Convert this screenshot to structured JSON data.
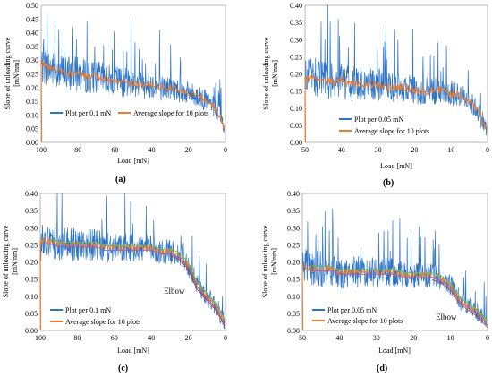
{
  "panels": [
    {
      "label": "(a)",
      "ylabel_lines": [
        "Slope of unloading curve",
        "[mN/nm]"
      ],
      "xlabel": "Load [mN]",
      "xticks": [
        100,
        80,
        60,
        40,
        20,
        0
      ],
      "yticks": [
        "0.00",
        "0.05",
        "0.10",
        "0.15",
        "0.20",
        "0.25",
        "0.30",
        "0.35",
        "0.40",
        "0.45",
        "0.50"
      ],
      "legend": [
        "Plot per 0.1 mN",
        "Average slope for 10 plots"
      ],
      "annotation": ""
    },
    {
      "label": "(b)",
      "ylabel_lines": [
        "Slope of unloading curve",
        "[mN/nm]"
      ],
      "xlabel": "Load [mN]",
      "xticks": [
        50,
        40,
        30,
        20,
        10,
        0
      ],
      "yticks": [
        "0.00",
        "0.05",
        "0.10",
        "0.15",
        "0.20",
        "0.25",
        "0.30",
        "0.35",
        "0.40"
      ],
      "legend": [
        "Plot per 0.05 mN",
        "Average slope for 10 plots"
      ],
      "annotation": ""
    },
    {
      "label": "(c)",
      "ylabel_lines": [
        "Slope of unloading curve",
        "[mN/nm]"
      ],
      "xlabel": "Load [mN]",
      "xticks": [
        100,
        80,
        60,
        40,
        20,
        0
      ],
      "yticks": [
        "0.00",
        "0.05",
        "0.10",
        "0.15",
        "0.20",
        "0.25",
        "0.30",
        "0.35",
        "0.40"
      ],
      "legend": [
        "Plot per 0.1 mN",
        "Average slope for 10 plots"
      ],
      "annotation": "Elbow"
    },
    {
      "label": "(d)",
      "ylabel_lines": [
        "Slope of unloading curve",
        "[mN/nm]"
      ],
      "xlabel": "Load [mN]",
      "xticks": [
        50,
        40,
        30,
        20,
        10,
        0
      ],
      "yticks": [
        "0.00",
        "0.05",
        "0.10",
        "0.15",
        "0.20",
        "0.25",
        "0.30",
        "0.35",
        "0.40"
      ],
      "legend": [
        "Plot per 0.05 mN",
        "Average slope for 10 plots"
      ],
      "annotation": "Elbow"
    }
  ],
  "colors": {
    "raw": "#2e75c9",
    "avg": "#ef7d2e",
    "fit_green": "#6fbf3f",
    "fit_purple": "#9a5ab4",
    "fit_red": "#c0392b"
  },
  "chart_data": [
    {
      "type": "line",
      "title": "",
      "xlabel": "Load [mN]",
      "ylabel": "Slope of unloading curve [mN/nm]",
      "xlim": [
        100,
        0
      ],
      "ylim": [
        0,
        0.5
      ],
      "x_reversed": true,
      "grid": false,
      "legend_position": "bottom-left",
      "series": [
        {
          "name": "Plot per 0.1 mN",
          "x": [
            100,
            95,
            90,
            85,
            80,
            75,
            70,
            65,
            60,
            55,
            50,
            45,
            40,
            35,
            30,
            25,
            20,
            15,
            10,
            5,
            0
          ],
          "values": [
            0.28,
            0.27,
            0.26,
            0.25,
            0.25,
            0.24,
            0.24,
            0.23,
            0.23,
            0.22,
            0.22,
            0.21,
            0.21,
            0.2,
            0.2,
            0.19,
            0.18,
            0.17,
            0.15,
            0.12,
            0.05
          ],
          "noise": 0.07
        },
        {
          "name": "Average slope for 10 plots",
          "x": [
            100,
            95,
            90,
            85,
            80,
            75,
            70,
            65,
            60,
            55,
            50,
            45,
            40,
            35,
            30,
            25,
            20,
            15,
            10,
            5,
            0
          ],
          "values": [
            0.29,
            0.27,
            0.26,
            0.25,
            0.25,
            0.24,
            0.24,
            0.23,
            0.23,
            0.22,
            0.22,
            0.21,
            0.21,
            0.2,
            0.2,
            0.19,
            0.18,
            0.17,
            0.15,
            0.12,
            0.05
          ],
          "noise": 0.012
        }
      ]
    },
    {
      "type": "line",
      "title": "",
      "xlabel": "Load [mN]",
      "ylabel": "Slope of unloading curve [mN/nm]",
      "xlim": [
        50,
        0
      ],
      "ylim": [
        0,
        0.4
      ],
      "x_reversed": true,
      "grid": false,
      "legend_position": "bottom-left",
      "series": [
        {
          "name": "Plot per 0.05 mN",
          "x": [
            50,
            47.5,
            45,
            42.5,
            40,
            37.5,
            35,
            32.5,
            30,
            27.5,
            25,
            22.5,
            20,
            17.5,
            15,
            12.5,
            10,
            7.5,
            5,
            2.5,
            0
          ],
          "values": [
            0.19,
            0.19,
            0.18,
            0.18,
            0.18,
            0.17,
            0.17,
            0.17,
            0.17,
            0.16,
            0.16,
            0.16,
            0.15,
            0.15,
            0.15,
            0.15,
            0.14,
            0.14,
            0.12,
            0.09,
            0.03
          ],
          "noise": 0.06
        },
        {
          "name": "Average slope for 10 plots",
          "x": [
            50,
            47.5,
            45,
            42.5,
            40,
            37.5,
            35,
            32.5,
            30,
            27.5,
            25,
            22.5,
            20,
            17.5,
            15,
            12.5,
            10,
            7.5,
            5,
            2.5,
            0
          ],
          "values": [
            0.19,
            0.19,
            0.18,
            0.18,
            0.18,
            0.17,
            0.17,
            0.17,
            0.17,
            0.16,
            0.16,
            0.16,
            0.15,
            0.15,
            0.15,
            0.15,
            0.14,
            0.14,
            0.12,
            0.09,
            0.03
          ],
          "noise": 0.012
        }
      ]
    },
    {
      "type": "line",
      "title": "",
      "xlabel": "Load [mN]",
      "ylabel": "Slope of unloading curve [mN/nm]",
      "xlim": [
        100,
        0
      ],
      "ylim": [
        0,
        0.4
      ],
      "x_reversed": true,
      "grid": false,
      "legend_position": "bottom-left",
      "series": [
        {
          "name": "Plot per 0.1 mN",
          "x": [
            100,
            95,
            90,
            85,
            80,
            75,
            70,
            65,
            60,
            55,
            50,
            45,
            40,
            35,
            30,
            25,
            20,
            15,
            10,
            5,
            0
          ],
          "values": [
            0.26,
            0.26,
            0.25,
            0.25,
            0.25,
            0.25,
            0.25,
            0.24,
            0.24,
            0.24,
            0.24,
            0.24,
            0.24,
            0.23,
            0.23,
            0.22,
            0.19,
            0.13,
            0.1,
            0.07,
            0.02
          ],
          "noise": 0.055
        },
        {
          "name": "Average slope for 10 plots",
          "x": [
            100,
            95,
            90,
            85,
            80,
            75,
            70,
            65,
            60,
            55,
            50,
            45,
            40,
            35,
            30,
            25,
            20,
            15,
            10,
            5,
            0
          ],
          "values": [
            0.26,
            0.26,
            0.25,
            0.25,
            0.25,
            0.25,
            0.25,
            0.24,
            0.24,
            0.24,
            0.24,
            0.24,
            0.24,
            0.23,
            0.23,
            0.22,
            0.19,
            0.13,
            0.1,
            0.07,
            0.02
          ],
          "noise": 0.01
        }
      ]
    },
    {
      "type": "line",
      "title": "",
      "xlabel": "Load [mN]",
      "ylabel": "Slope of unloading curve [mN/nm]",
      "xlim": [
        50,
        0
      ],
      "ylim": [
        0,
        0.4
      ],
      "x_reversed": true,
      "grid": false,
      "legend_position": "bottom-left",
      "series": [
        {
          "name": "Plot per 0.05 mN",
          "x": [
            50,
            47.5,
            45,
            42.5,
            40,
            37.5,
            35,
            32.5,
            30,
            27.5,
            25,
            22.5,
            20,
            17.5,
            15,
            12.5,
            10,
            7.5,
            5,
            2.5,
            0
          ],
          "values": [
            0.19,
            0.18,
            0.18,
            0.18,
            0.17,
            0.17,
            0.17,
            0.17,
            0.17,
            0.17,
            0.17,
            0.16,
            0.16,
            0.16,
            0.16,
            0.15,
            0.13,
            0.09,
            0.07,
            0.05,
            0.02
          ],
          "noise": 0.055
        },
        {
          "name": "Average slope for 10 plots",
          "x": [
            50,
            47.5,
            45,
            42.5,
            40,
            37.5,
            35,
            32.5,
            30,
            27.5,
            25,
            22.5,
            20,
            17.5,
            15,
            12.5,
            10,
            7.5,
            5,
            2.5,
            0
          ],
          "values": [
            0.19,
            0.18,
            0.18,
            0.18,
            0.17,
            0.17,
            0.17,
            0.17,
            0.17,
            0.17,
            0.17,
            0.16,
            0.16,
            0.16,
            0.16,
            0.15,
            0.13,
            0.09,
            0.07,
            0.05,
            0.02
          ],
          "noise": 0.01
        }
      ]
    }
  ]
}
